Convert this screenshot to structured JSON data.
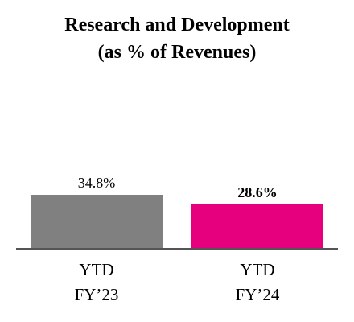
{
  "chart_data": {
    "type": "bar",
    "title": "Research and Development",
    "subtitle": "(as % of Revenues)",
    "categories": [
      {
        "line1": "YTD",
        "line2": "FY’23"
      },
      {
        "line1": "YTD",
        "line2": "FY’24"
      }
    ],
    "values": [
      34.8,
      28.6
    ],
    "value_labels": [
      "34.8%",
      "28.6%"
    ],
    "bold_labels": [
      false,
      true
    ],
    "colors": [
      "#808080",
      "#e6007e"
    ],
    "baseline_color": "#555555",
    "ylim": [
      0,
      34.8
    ],
    "xlabel": "",
    "ylabel": "",
    "grid": false,
    "legend": "none"
  }
}
